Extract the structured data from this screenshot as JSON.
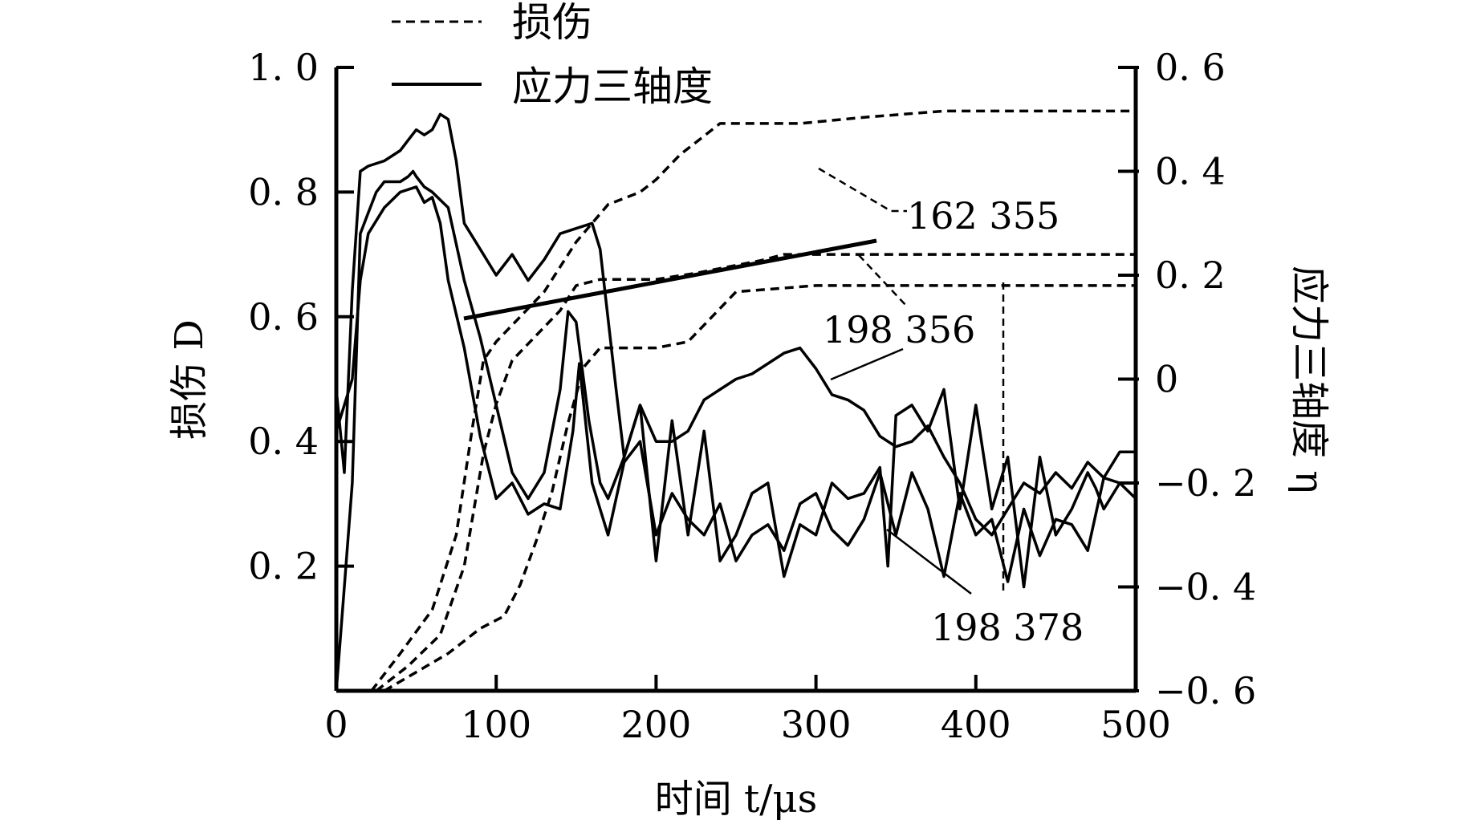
{
  "chart_data": {
    "type": "line",
    "xlabel": "时间 t/μs",
    "ylabel_left": "损伤 D",
    "ylabel_right": "应力三轴度 η",
    "xlim": [
      0,
      500
    ],
    "ylim_left": [
      0,
      1.0
    ],
    "ylim_right": [
      -0.6,
      0.6
    ],
    "x_ticks": [
      "0",
      "100",
      "200",
      "300",
      "400",
      "500"
    ],
    "y_ticks_left": [
      "1.0",
      "0.8",
      "0.6",
      "0.4",
      "0.2"
    ],
    "y_ticks_right": [
      "0.6",
      "0.4",
      "0.2",
      "0",
      "-0.2",
      "-0.4",
      "-0.6"
    ],
    "legend": {
      "damage": "损伤",
      "triaxiality": "应力三轴度"
    },
    "annotations": [
      "162 355",
      "198 356",
      "198 378"
    ],
    "series": [
      {
        "name": "162 355",
        "axis": "left",
        "style": "dashed",
        "x": [
          22,
          40,
          60,
          75,
          85,
          92,
          100,
          115,
          130,
          140,
          150,
          160,
          170,
          190,
          200,
          215,
          230,
          240,
          260,
          290,
          330,
          380,
          500
        ],
        "y": [
          0,
          0.06,
          0.13,
          0.25,
          0.42,
          0.53,
          0.56,
          0.6,
          0.64,
          0.68,
          0.72,
          0.75,
          0.78,
          0.8,
          0.82,
          0.86,
          0.89,
          0.91,
          0.91,
          0.91,
          0.92,
          0.93,
          0.93
        ]
      },
      {
        "name": "198 356",
        "axis": "left",
        "style": "dashed",
        "x": [
          25,
          45,
          65,
          80,
          92,
          100,
          110,
          125,
          140,
          150,
          165,
          180,
          200,
          225,
          245,
          265,
          280,
          320,
          400,
          500
        ],
        "y": [
          0,
          0.04,
          0.09,
          0.2,
          0.38,
          0.46,
          0.53,
          0.57,
          0.61,
          0.65,
          0.66,
          0.66,
          0.66,
          0.67,
          0.68,
          0.69,
          0.7,
          0.7,
          0.7,
          0.7
        ]
      },
      {
        "name": "198 378",
        "axis": "left",
        "style": "dashed",
        "x": [
          30,
          50,
          70,
          90,
          105,
          115,
          125,
          135,
          145,
          155,
          165,
          180,
          200,
          220,
          235,
          250,
          300,
          400,
          415,
          500
        ],
        "y": [
          0,
          0.03,
          0.06,
          0.1,
          0.12,
          0.17,
          0.24,
          0.32,
          0.43,
          0.52,
          0.55,
          0.55,
          0.55,
          0.56,
          0.6,
          0.64,
          0.65,
          0.65,
          0.65,
          0.65
        ]
      },
      {
        "name": "198 378 η",
        "axis": "right",
        "style": "solid",
        "x": [
          0,
          5,
          10,
          15,
          20,
          30,
          40,
          45,
          50,
          55,
          60,
          65,
          70,
          75,
          80,
          90,
          100,
          110,
          120,
          130,
          140,
          150,
          160,
          165,
          175,
          180,
          190,
          200,
          210,
          220,
          230,
          240,
          250,
          260,
          270,
          280,
          290,
          300,
          310,
          320,
          330,
          340,
          350,
          360,
          370,
          380,
          390,
          400,
          410,
          420,
          430,
          440,
          450,
          460,
          470,
          480,
          490,
          500
        ],
        "y": [
          -0.02,
          -0.18,
          0.17,
          0.4,
          0.41,
          0.42,
          0.44,
          0.46,
          0.48,
          0.47,
          0.48,
          0.51,
          0.5,
          0.42,
          0.3,
          0.25,
          0.2,
          0.24,
          0.19,
          0.23,
          0.28,
          0.29,
          0.3,
          0.25,
          -0.02,
          -0.15,
          -0.05,
          -0.12,
          -0.12,
          -0.1,
          -0.04,
          -0.02,
          0.0,
          0.01,
          0.03,
          0.05,
          0.06,
          0.02,
          -0.03,
          -0.04,
          -0.06,
          -0.11,
          -0.13,
          -0.12,
          -0.09,
          -0.15,
          -0.2,
          -0.27,
          -0.3,
          -0.25,
          -0.2,
          -0.22,
          -0.18,
          -0.21,
          -0.16,
          -0.19,
          -0.2,
          -0.23
        ]
      },
      {
        "name": "198 356 η",
        "axis": "right",
        "style": "solid",
        "x": [
          0,
          5,
          10,
          15,
          20,
          30,
          40,
          50,
          55,
          60,
          65,
          70,
          80,
          90,
          100,
          110,
          120,
          130,
          140,
          148,
          152,
          160,
          170,
          180,
          190,
          200,
          210,
          220,
          230,
          240,
          250,
          260,
          270,
          280,
          290,
          300,
          310,
          320,
          330,
          340,
          350,
          360,
          370,
          380,
          390,
          400,
          410,
          420,
          430,
          440,
          450,
          460,
          470,
          480,
          490,
          500
        ],
        "y": [
          -0.1,
          -0.05,
          0.0,
          0.19,
          0.28,
          0.33,
          0.36,
          0.37,
          0.34,
          0.35,
          0.3,
          0.19,
          0.06,
          -0.11,
          -0.23,
          -0.2,
          -0.26,
          -0.24,
          -0.25,
          -0.1,
          0.03,
          -0.2,
          -0.3,
          -0.16,
          -0.12,
          -0.3,
          -0.22,
          -0.27,
          -0.3,
          -0.24,
          -0.35,
          -0.3,
          -0.28,
          -0.33,
          -0.24,
          -0.22,
          -0.29,
          -0.32,
          -0.27,
          -0.18,
          -0.3,
          -0.18,
          -0.25,
          -0.38,
          -0.22,
          -0.3,
          -0.27,
          -0.39,
          -0.25,
          -0.34,
          -0.27,
          -0.28,
          -0.33,
          -0.19,
          -0.14,
          -0.14
        ]
      },
      {
        "name": "162 355 η",
        "axis": "right",
        "style": "solid",
        "x": [
          0,
          5,
          10,
          15,
          20,
          25,
          30,
          40,
          45,
          48,
          50,
          55,
          60,
          70,
          80,
          90,
          100,
          110,
          120,
          130,
          140,
          145,
          150,
          158,
          165,
          170,
          180,
          190,
          200,
          210,
          220,
          230,
          240,
          250,
          260,
          270,
          280,
          290,
          300,
          310,
          320,
          330,
          340,
          345,
          350,
          360,
          370,
          380,
          390,
          400,
          410,
          420,
          430,
          440,
          450,
          460,
          470,
          475,
          480,
          490,
          500
        ],
        "y": [
          -0.6,
          -0.4,
          -0.2,
          0.28,
          0.32,
          0.36,
          0.38,
          0.38,
          0.39,
          0.4,
          0.39,
          0.37,
          0.36,
          0.33,
          0.19,
          0.08,
          -0.05,
          -0.18,
          -0.23,
          -0.18,
          -0.02,
          0.13,
          0.11,
          -0.08,
          -0.2,
          -0.23,
          -0.15,
          -0.05,
          -0.35,
          -0.08,
          -0.3,
          -0.1,
          -0.35,
          -0.3,
          -0.22,
          -0.2,
          -0.38,
          -0.28,
          -0.3,
          -0.2,
          -0.23,
          -0.22,
          -0.17,
          -0.36,
          -0.07,
          -0.05,
          -0.1,
          -0.02,
          -0.25,
          -0.05,
          -0.25,
          -0.15,
          -0.4,
          -0.15,
          -0.3,
          -0.25,
          -0.18,
          -0.21,
          -0.25,
          -0.2,
          -0.2
        ]
      }
    ]
  }
}
